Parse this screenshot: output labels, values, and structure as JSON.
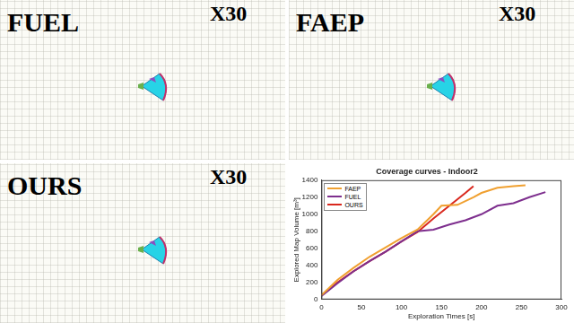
{
  "panels": [
    {
      "label": "FUEL",
      "speed": "X30"
    },
    {
      "label": "FAEP",
      "speed": "X30"
    },
    {
      "label": "OURS",
      "speed": "X30"
    }
  ],
  "chart_data": {
    "type": "line",
    "title": "Coverage curves - Indoor2",
    "x_label": "Exploration Times [s]",
    "y_label": "Explored Map Volume [m³]",
    "xlim": [
      0,
      300
    ],
    "xticks": [
      0,
      50,
      100,
      150,
      200,
      250,
      300
    ],
    "ylim": [
      0,
      1400
    ],
    "yticks": [
      0,
      200,
      400,
      600,
      800,
      1000,
      1200,
      1400
    ],
    "grid": false,
    "legend": "upper left",
    "series": [
      {
        "name": "FAEP",
        "color": "#f0a030",
        "x": [
          0,
          20,
          40,
          60,
          80,
          100,
          120,
          140,
          150,
          170,
          190,
          200,
          220,
          240,
          255
        ],
        "values": [
          50,
          230,
          370,
          500,
          610,
          720,
          820,
          1000,
          1100,
          1110,
          1200,
          1250,
          1310,
          1330,
          1340
        ]
      },
      {
        "name": "FUEL",
        "color": "#7e2f8e",
        "x": [
          0,
          20,
          40,
          60,
          80,
          100,
          120,
          140,
          160,
          180,
          200,
          220,
          240,
          260,
          280
        ],
        "values": [
          40,
          190,
          330,
          450,
          560,
          680,
          800,
          820,
          880,
          930,
          1000,
          1100,
          1130,
          1200,
          1260
        ]
      },
      {
        "name": "OURS",
        "color": "#d9281e",
        "x": [
          0,
          10,
          20,
          40,
          60,
          80,
          100,
          120,
          140,
          160,
          180,
          190
        ],
        "values": [
          50,
          120,
          200,
          330,
          450,
          560,
          680,
          790,
          950,
          1100,
          1250,
          1330
        ]
      }
    ]
  }
}
